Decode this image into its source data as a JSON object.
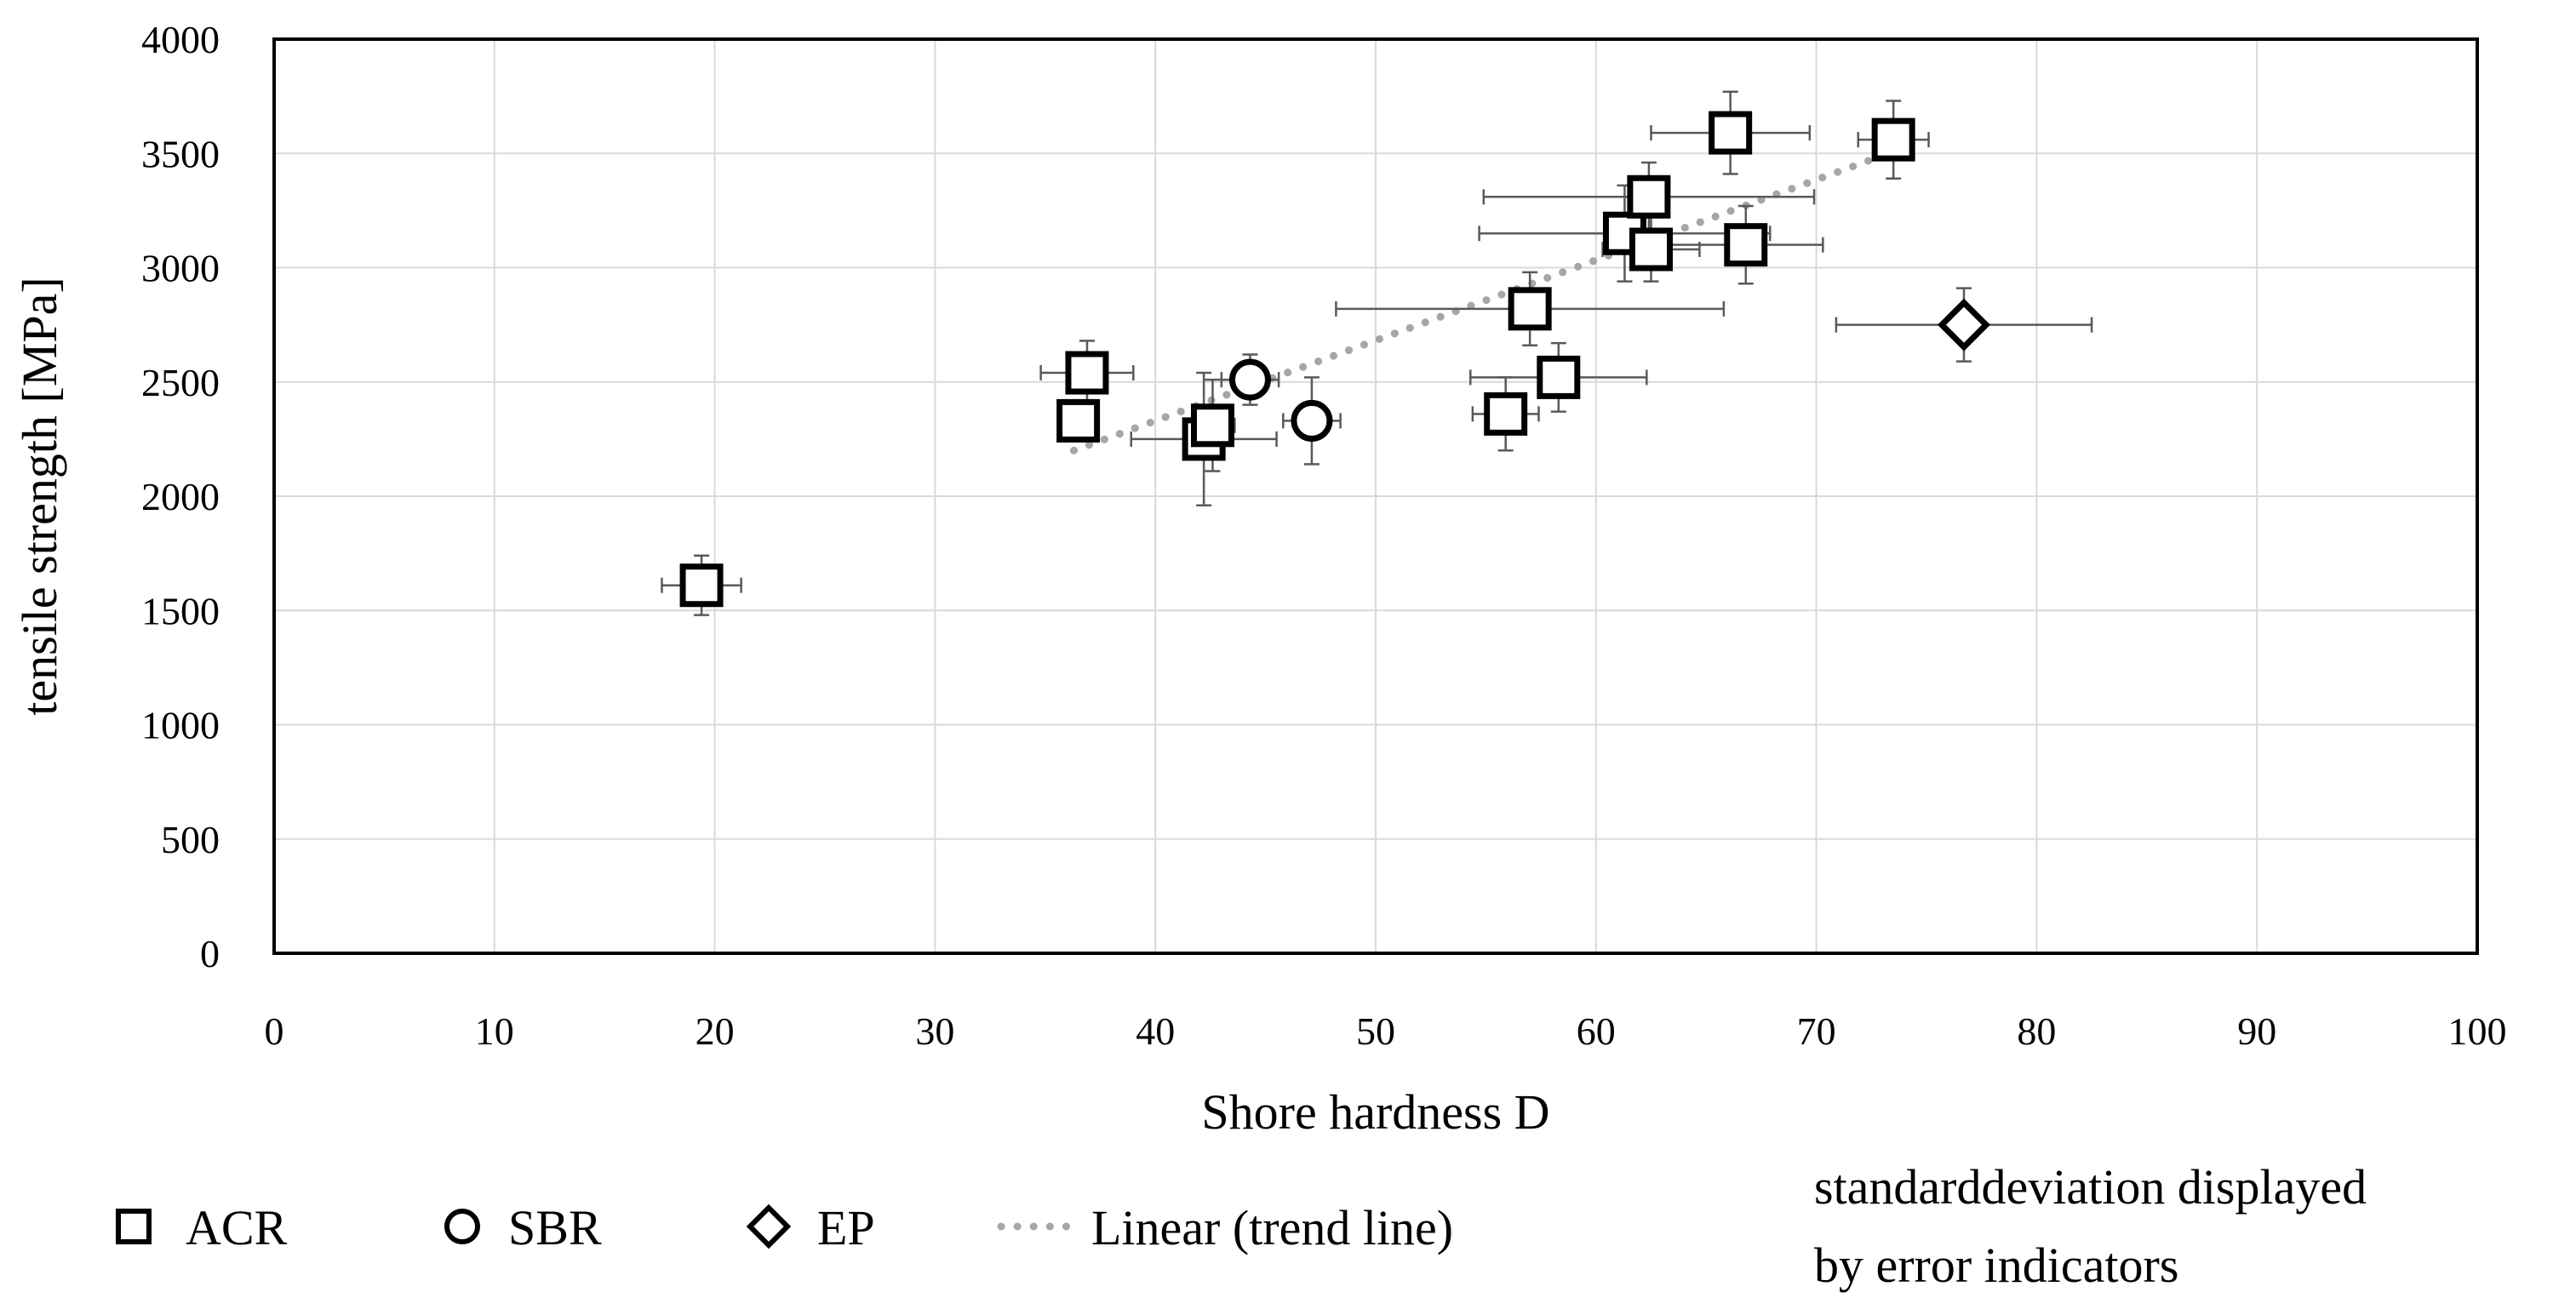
{
  "chart_data": {
    "type": "scatter",
    "xlabel": "Shore hardness D",
    "ylabel": "tensile strength [MPa]",
    "xlim": [
      0,
      100
    ],
    "ylim": [
      0,
      4000
    ],
    "x_ticks": [
      "0",
      "10",
      "20",
      "30",
      "40",
      "50",
      "60",
      "70",
      "80",
      "90",
      "100"
    ],
    "y_ticks": [
      "0",
      "500",
      "1000",
      "1500",
      "2000",
      "2500",
      "3000",
      "3500",
      "4000"
    ],
    "grid": true,
    "legend_position": "bottom",
    "series": [
      {
        "name": "ACR",
        "marker": "square",
        "points": [
          {
            "x": 19.4,
            "y": 1610,
            "xerr": 1.8,
            "yerr": 130
          },
          {
            "x": 36.5,
            "y": 2330,
            "xerr": 0,
            "yerr": 0
          },
          {
            "x": 36.9,
            "y": 2540,
            "xerr": 2.1,
            "yerr": 140
          },
          {
            "x": 42.2,
            "y": 2250,
            "xerr": 3.3,
            "yerr": 290
          },
          {
            "x": 42.6,
            "y": 2310,
            "xerr": 1.0,
            "yerr": 200
          },
          {
            "x": 55.9,
            "y": 2360,
            "xerr": 1.5,
            "yerr": 160
          },
          {
            "x": 58.3,
            "y": 2520,
            "xerr": 4.0,
            "yerr": 150
          },
          {
            "x": 57.0,
            "y": 2820,
            "xerr": 8.8,
            "yerr": 160
          },
          {
            "x": 61.3,
            "y": 3150,
            "xerr": 6.6,
            "yerr": 210
          },
          {
            "x": 62.4,
            "y": 3310,
            "xerr": 7.5,
            "yerr": 150
          },
          {
            "x": 62.5,
            "y": 3080,
            "xerr": 2.2,
            "yerr": 140
          },
          {
            "x": 66.8,
            "y": 3100,
            "xerr": 3.5,
            "yerr": 170
          },
          {
            "x": 66.1,
            "y": 3590,
            "xerr": 3.6,
            "yerr": 180
          },
          {
            "x": 73.5,
            "y": 3560,
            "xerr": 1.6,
            "yerr": 170
          }
        ]
      },
      {
        "name": "SBR",
        "marker": "circle",
        "points": [
          {
            "x": 44.3,
            "y": 2510,
            "xerr": 1.3,
            "yerr": 110
          },
          {
            "x": 47.1,
            "y": 2330,
            "xerr": 1.3,
            "yerr": 190
          }
        ]
      },
      {
        "name": "EP",
        "marker": "diamond",
        "points": [
          {
            "x": 76.7,
            "y": 2750,
            "xerr": 5.8,
            "yerr": 160
          }
        ]
      }
    ],
    "trendline": {
      "name": "Linear (trend line)",
      "x": [
        36.3,
        73.0
      ],
      "y": [
        2200,
        3490
      ]
    },
    "note": [
      "standarddeviation displayed",
      "by error indicators"
    ]
  }
}
